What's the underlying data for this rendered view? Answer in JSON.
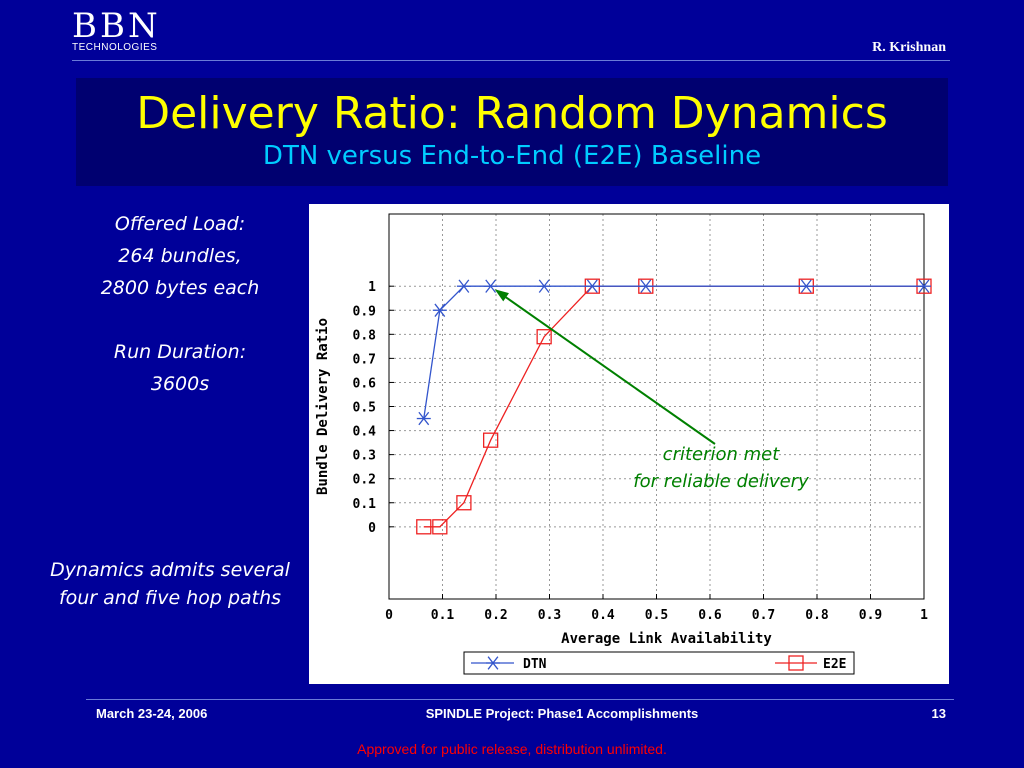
{
  "header": {
    "logo_main": "BBN",
    "logo_sub": "TECHNOLOGIES",
    "author": "R. Krishnan"
  },
  "slide": {
    "title": "Delivery Ratio: Random Dynamics",
    "subtitle": "DTN versus End-to-End (E2E) Baseline"
  },
  "sidebar": {
    "lines": [
      "Offered Load:",
      "264 bundles,",
      "2800 bytes each",
      "",
      "Run Duration:",
      "3600s"
    ],
    "note_lines": [
      "Dynamics admits several",
      "four and five hop paths"
    ]
  },
  "annotation": {
    "lines": [
      "criterion met",
      "for reliable delivery"
    ],
    "color": "#008000"
  },
  "footer": {
    "date": "March 23-24, 2006",
    "project": "SPINDLE Project: Phase1 Accomplishments",
    "page": "13",
    "approved": "Approved for public release, distribution unlimited."
  },
  "chart_data": {
    "type": "line",
    "title": "",
    "xlabel": "Average Link Availability",
    "ylabel": "Bundle Delivery Ratio",
    "xlim": [
      0,
      1
    ],
    "ylim": [
      -0.3,
      1.3
    ],
    "xticks": [
      0,
      0.1,
      0.2,
      0.3,
      0.4,
      0.5,
      0.6,
      0.7,
      0.8,
      0.9,
      1
    ],
    "xtick_labels": [
      "0",
      "0.1",
      "0.2",
      "0.3",
      "0.4",
      "0.5",
      "0.6",
      "0.7",
      "0.8",
      "0.9",
      "1"
    ],
    "yticks": [
      0,
      0.1,
      0.2,
      0.3,
      0.4,
      0.5,
      0.6,
      0.7,
      0.8,
      0.9,
      1
    ],
    "ytick_labels": [
      "0",
      "0.1",
      "0.2",
      "0.3",
      "0.4",
      "0.5",
      "0.6",
      "0.7",
      "0.8",
      "0.9",
      "1"
    ],
    "grid": true,
    "legend": "bottom",
    "series": [
      {
        "name": "DTN",
        "color": "#3355cc",
        "marker": "asterisk",
        "x": [
          0.065,
          0.095,
          0.14,
          0.19,
          0.29,
          0.38,
          0.48,
          0.78,
          1.0
        ],
        "y": [
          0.45,
          0.9,
          1,
          1,
          1,
          1,
          1,
          1,
          1
        ]
      },
      {
        "name": "E2E",
        "color": "#ee2222",
        "marker": "square",
        "x": [
          0.065,
          0.095,
          0.14,
          0.19,
          0.29,
          0.38,
          0.48,
          0.78,
          1.0
        ],
        "y": [
          0,
          0,
          0.1,
          0.36,
          0.79,
          1,
          1,
          1,
          1
        ]
      }
    ]
  }
}
